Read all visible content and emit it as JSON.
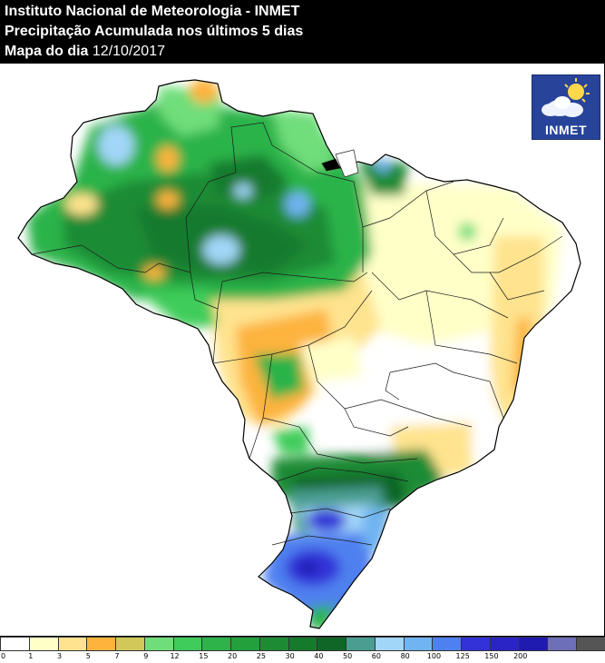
{
  "header": {
    "line1": "Instituto Nacional de Meteorologia - INMET",
    "line2": "Precipitação Acumulada nos últimos 5 dias",
    "line3_label": "Mapa do dia ",
    "line3_date": "12/10/2017"
  },
  "logo": {
    "text": "INMET"
  },
  "legend": {
    "colors": [
      "#ffffff",
      "#ffffc8",
      "#ffe38e",
      "#fdb33c",
      "#d0c95a",
      "#6fde7a",
      "#3fcc5a",
      "#2cb34a",
      "#23a03c",
      "#1d8b34",
      "#167a2d",
      "#0f6627",
      "#4a9e91",
      "#a2d6f8",
      "#70b4f1",
      "#4f80ef",
      "#3332d8",
      "#2a24c7",
      "#1f1ab0",
      "#6d6fb8",
      "#555555"
    ],
    "ticks": [
      "0",
      "1",
      "3",
      "5",
      "7",
      "9",
      "12",
      "15",
      "20",
      "25",
      "30",
      "40",
      "50",
      "60",
      "80",
      "100",
      "125",
      "150",
      "200"
    ]
  }
}
